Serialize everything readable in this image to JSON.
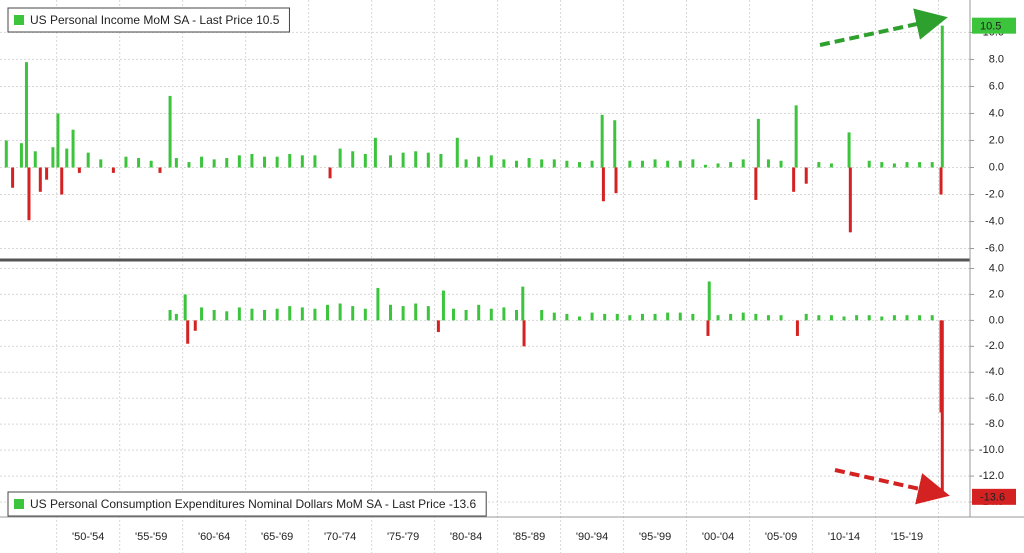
{
  "x_axis": {
    "xlim": [
      1945.5,
      2022.5
    ],
    "xticks": [
      1950,
      1955,
      1960,
      1965,
      1970,
      1975,
      1980,
      1985,
      1990,
      1995,
      2000,
      2005,
      2010,
      2015,
      2020
    ],
    "categories": [
      "'50-'54",
      "'55-'59",
      "'60-'64",
      "'65-'69",
      "'70-'74",
      "'75-'79",
      "'80-'84",
      "'85-'89",
      "'90-'94",
      "'95-'99",
      "'00-'04",
      "'05-'09",
      "'10-'14",
      "'15-'19"
    ]
  },
  "chart_data": [
    {
      "type": "bar",
      "title": "US Personal Income MoM SA - Last Price 10.5",
      "last_price": 10.5,
      "positive_color": "#3cc43c",
      "negative_color": "#d42222",
      "grid": true,
      "ylim": [
        -6.7,
        12.4
      ],
      "yticks": [
        {
          "value": -6,
          "label": "-6.0"
        },
        {
          "value": -4,
          "label": "-4.0"
        },
        {
          "value": -2,
          "label": "-2.0"
        },
        {
          "value": 0,
          "label": "0.0"
        },
        {
          "value": 2,
          "label": "2.0"
        },
        {
          "value": 4,
          "label": "4.0"
        },
        {
          "value": 6,
          "label": "6.0"
        },
        {
          "value": 8,
          "label": "8.0"
        },
        {
          "value": 10,
          "label": "10.0"
        }
      ],
      "x": [
        1946,
        1946.5,
        1947.2,
        1947.6,
        1947.8,
        1948.3,
        1948.7,
        1949.2,
        1949.7,
        1950.1,
        1950.4,
        1950.8,
        1951.3,
        1951.8,
        1952.5,
        1953.5,
        1954.5,
        1955.5,
        1956.5,
        1957.5,
        1958.2,
        1959.0,
        1959.5,
        1960.5,
        1961.5,
        1962.5,
        1963.5,
        1964.5,
        1965.5,
        1966.5,
        1967.5,
        1968.5,
        1969.5,
        1970.5,
        1971.7,
        1972.5,
        1973.5,
        1974.5,
        1975.3,
        1976.5,
        1977.5,
        1978.5,
        1979.5,
        1980.5,
        1981.8,
        1982.5,
        1983.5,
        1984.5,
        1985.5,
        1986.5,
        1987.5,
        1988.5,
        1989.5,
        1990.5,
        1991.5,
        1992.5,
        1993.3,
        1993.4,
        1994.3,
        1994.4,
        1995.5,
        1996.5,
        1997.5,
        1998.5,
        1999.5,
        2000.5,
        2001.5,
        2002.5,
        2003.5,
        2004.5,
        2005.5,
        2005.7,
        2006.5,
        2007.5,
        2008.5,
        2008.7,
        2009.5,
        2010.5,
        2011.5,
        2012.9,
        2013.0,
        2014.5,
        2015.5,
        2016.5,
        2017.5,
        2018.5,
        2019.5,
        2020.2,
        2020.3
      ],
      "values": [
        2.0,
        -1.5,
        1.8,
        7.8,
        -3.9,
        1.2,
        -1.8,
        -0.9,
        1.5,
        4.0,
        -2.0,
        1.4,
        2.8,
        -0.4,
        1.1,
        0.6,
        -0.4,
        0.8,
        0.7,
        0.5,
        -0.4,
        5.3,
        0.7,
        0.4,
        0.8,
        0.6,
        0.7,
        0.9,
        1.0,
        0.8,
        0.8,
        1.0,
        0.9,
        0.9,
        -0.8,
        1.4,
        1.2,
        1.0,
        2.2,
        0.9,
        1.1,
        1.2,
        1.1,
        1.0,
        2.2,
        0.6,
        0.8,
        0.9,
        0.6,
        0.5,
        0.7,
        0.6,
        0.6,
        0.5,
        0.4,
        0.5,
        3.9,
        -2.5,
        3.5,
        -1.9,
        0.5,
        0.5,
        0.6,
        0.5,
        0.5,
        0.6,
        0.2,
        0.3,
        0.4,
        0.6,
        -2.4,
        3.6,
        0.6,
        0.5,
        -1.8,
        4.6,
        -1.2,
        0.4,
        0.3,
        2.6,
        -4.8,
        0.5,
        0.4,
        0.3,
        0.4,
        0.4,
        0.4,
        -2.0,
        10.5
      ]
    },
    {
      "type": "bar",
      "title": "US Personal Consumption Expenditures Nominal Dollars MoM SA - Last Price -13.6",
      "last_price": -13.6,
      "positive_color": "#3cc43c",
      "negative_color": "#d42222",
      "grid": true,
      "ylim": [
        -15,
        4.5
      ],
      "yticks": [
        {
          "value": -14,
          "label": "-14.0"
        },
        {
          "value": -12,
          "label": "-12.0"
        },
        {
          "value": -10,
          "label": "-10.0"
        },
        {
          "value": -8,
          "label": "-8.0"
        },
        {
          "value": -6,
          "label": "-6.0"
        },
        {
          "value": -4,
          "label": "-4.0"
        },
        {
          "value": -2,
          "label": "-2.0"
        },
        {
          "value": 0,
          "label": "0.0"
        },
        {
          "value": 2,
          "label": "2.0"
        },
        {
          "value": 4,
          "label": "4.0"
        }
      ],
      "x": [
        1959.0,
        1959.5,
        1960.2,
        1960.4,
        1961.0,
        1961.5,
        1962.5,
        1963.5,
        1964.5,
        1965.5,
        1966.5,
        1967.5,
        1968.5,
        1969.5,
        1970.5,
        1971.5,
        1972.5,
        1973.5,
        1974.5,
        1975.5,
        1976.5,
        1977.5,
        1978.5,
        1979.5,
        1980.3,
        1980.7,
        1981.5,
        1982.5,
        1983.5,
        1984.5,
        1985.5,
        1986.5,
        1987.0,
        1987.1,
        1988.5,
        1989.5,
        1990.5,
        1991.5,
        1992.5,
        1993.5,
        1994.5,
        1995.5,
        1996.5,
        1997.5,
        1998.5,
        1999.5,
        2000.5,
        2001.7,
        2001.8,
        2002.5,
        2003.5,
        2004.5,
        2005.5,
        2006.5,
        2007.5,
        2008.8,
        2009.5,
        2010.5,
        2011.5,
        2012.5,
        2013.5,
        2014.5,
        2015.5,
        2016.5,
        2017.5,
        2018.5,
        2019.5,
        2020.2,
        2020.3
      ],
      "values": [
        0.8,
        0.5,
        2.0,
        -1.8,
        -0.8,
        1.0,
        0.8,
        0.7,
        1.0,
        0.9,
        0.8,
        0.9,
        1.1,
        1.0,
        0.9,
        1.2,
        1.3,
        1.1,
        0.9,
        2.5,
        1.2,
        1.1,
        1.3,
        1.1,
        -0.9,
        2.3,
        0.9,
        0.8,
        1.2,
        0.9,
        1.0,
        0.8,
        2.6,
        -2.0,
        0.8,
        0.6,
        0.5,
        0.3,
        0.6,
        0.5,
        0.5,
        0.4,
        0.5,
        0.5,
        0.6,
        0.6,
        0.5,
        -1.2,
        3.0,
        0.4,
        0.5,
        0.6,
        0.5,
        0.4,
        0.4,
        -1.2,
        0.5,
        0.4,
        0.4,
        0.3,
        0.4,
        0.4,
        0.3,
        0.4,
        0.4,
        0.4,
        0.4,
        -7.1,
        -13.6
      ]
    }
  ]
}
